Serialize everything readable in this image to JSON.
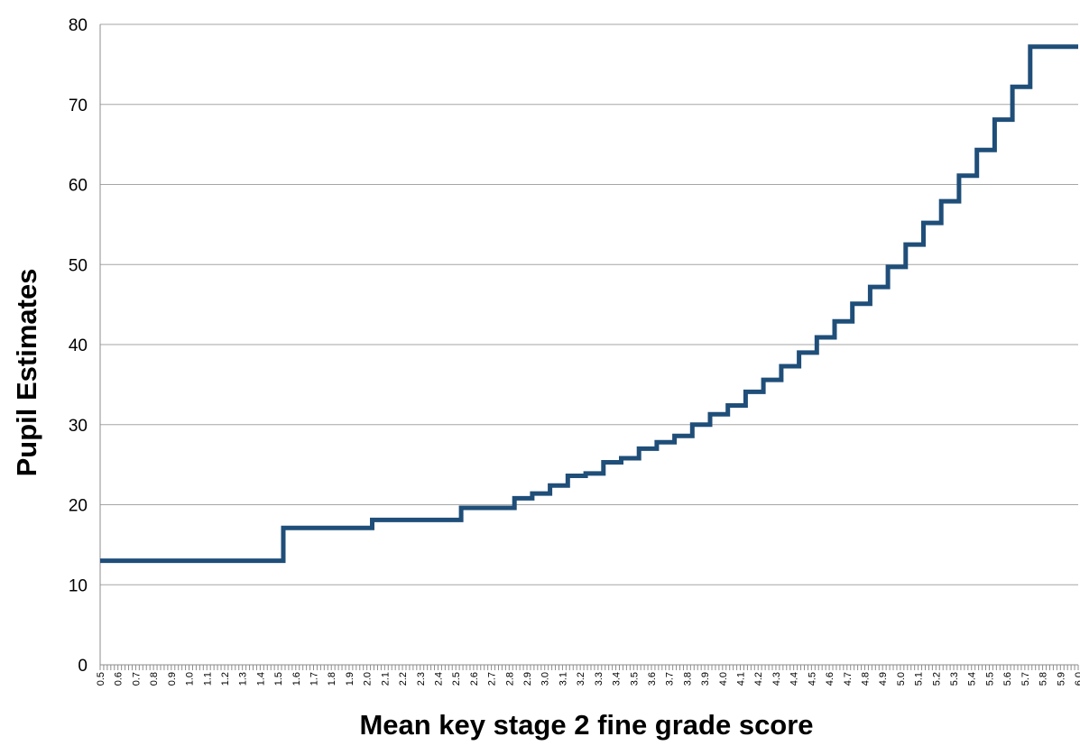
{
  "chart_data": {
    "type": "line",
    "title": "",
    "xlabel": "Mean key stage 2 fine grade score",
    "ylabel": "Pupil Estimates",
    "ylim": [
      0,
      80
    ],
    "yticks": [
      0,
      10,
      20,
      30,
      40,
      50,
      60,
      70,
      80
    ],
    "x_range": [
      0.5,
      6.0
    ],
    "x_label_step": 0.1,
    "x_minor_step": 0.02,
    "grid": "horizontal",
    "legend": "none",
    "line_color": "#1f4e79",
    "x_tick_labels": [
      "0.5",
      "0.6",
      "0.7",
      "0.8",
      "0.9",
      "1.0",
      "1.1",
      "1.2",
      "1.3",
      "1.4",
      "1.5",
      "1.6",
      "1.7",
      "1.8",
      "1.9",
      "2.0",
      "2.1",
      "2.2",
      "2.3",
      "2.4",
      "2.5",
      "2.6",
      "2.7",
      "2.8",
      "2.9",
      "3.0",
      "3.1",
      "3.2",
      "3.3",
      "3.4",
      "3.5",
      "3.6",
      "3.7",
      "3.8",
      "3.9",
      "4.0",
      "4.1",
      "4.2",
      "4.3",
      "4.4",
      "4.5",
      "4.6",
      "4.7",
      "4.8",
      "4.9",
      "5.0",
      "5.1",
      "5.2",
      "5.3",
      "5.4",
      "5.5",
      "5.6",
      "5.7",
      "5.8",
      "5.9",
      "6.0"
    ],
    "series": [
      {
        "points": [
          [
            0.5,
            13.0
          ],
          [
            1.53,
            13.0
          ],
          [
            1.53,
            17.1
          ],
          [
            2.03,
            17.1
          ],
          [
            2.03,
            18.1
          ],
          [
            2.53,
            18.1
          ],
          [
            2.53,
            19.6
          ],
          [
            2.83,
            19.6
          ],
          [
            2.83,
            20.8
          ],
          [
            2.93,
            20.8
          ],
          [
            2.93,
            21.4
          ],
          [
            3.03,
            21.4
          ],
          [
            3.03,
            22.4
          ],
          [
            3.13,
            22.4
          ],
          [
            3.13,
            23.6
          ],
          [
            3.23,
            23.6
          ],
          [
            3.23,
            23.9
          ],
          [
            3.33,
            23.9
          ],
          [
            3.33,
            25.3
          ],
          [
            3.43,
            25.3
          ],
          [
            3.43,
            25.8
          ],
          [
            3.53,
            25.8
          ],
          [
            3.53,
            27.0
          ],
          [
            3.63,
            27.0
          ],
          [
            3.63,
            27.8
          ],
          [
            3.73,
            27.8
          ],
          [
            3.73,
            28.6
          ],
          [
            3.83,
            28.6
          ],
          [
            3.83,
            30.0
          ],
          [
            3.93,
            30.0
          ],
          [
            3.93,
            31.3
          ],
          [
            4.03,
            31.3
          ],
          [
            4.03,
            32.4
          ],
          [
            4.13,
            32.4
          ],
          [
            4.13,
            34.1
          ],
          [
            4.23,
            34.1
          ],
          [
            4.23,
            35.6
          ],
          [
            4.33,
            35.6
          ],
          [
            4.33,
            37.3
          ],
          [
            4.43,
            37.3
          ],
          [
            4.43,
            39.0
          ],
          [
            4.53,
            39.0
          ],
          [
            4.53,
            40.9
          ],
          [
            4.63,
            40.9
          ],
          [
            4.63,
            42.9
          ],
          [
            4.73,
            42.9
          ],
          [
            4.73,
            45.1
          ],
          [
            4.83,
            45.1
          ],
          [
            4.83,
            47.2
          ],
          [
            4.93,
            47.2
          ],
          [
            4.93,
            49.7
          ],
          [
            5.03,
            49.7
          ],
          [
            5.03,
            52.5
          ],
          [
            5.13,
            52.5
          ],
          [
            5.13,
            55.2
          ],
          [
            5.23,
            55.2
          ],
          [
            5.23,
            57.9
          ],
          [
            5.33,
            57.9
          ],
          [
            5.33,
            61.1
          ],
          [
            5.43,
            61.1
          ],
          [
            5.43,
            64.3
          ],
          [
            5.53,
            64.3
          ],
          [
            5.53,
            68.1
          ],
          [
            5.63,
            68.1
          ],
          [
            5.63,
            72.2
          ],
          [
            5.73,
            72.2
          ],
          [
            5.73,
            77.2
          ],
          [
            6.0,
            77.2
          ]
        ]
      }
    ]
  }
}
